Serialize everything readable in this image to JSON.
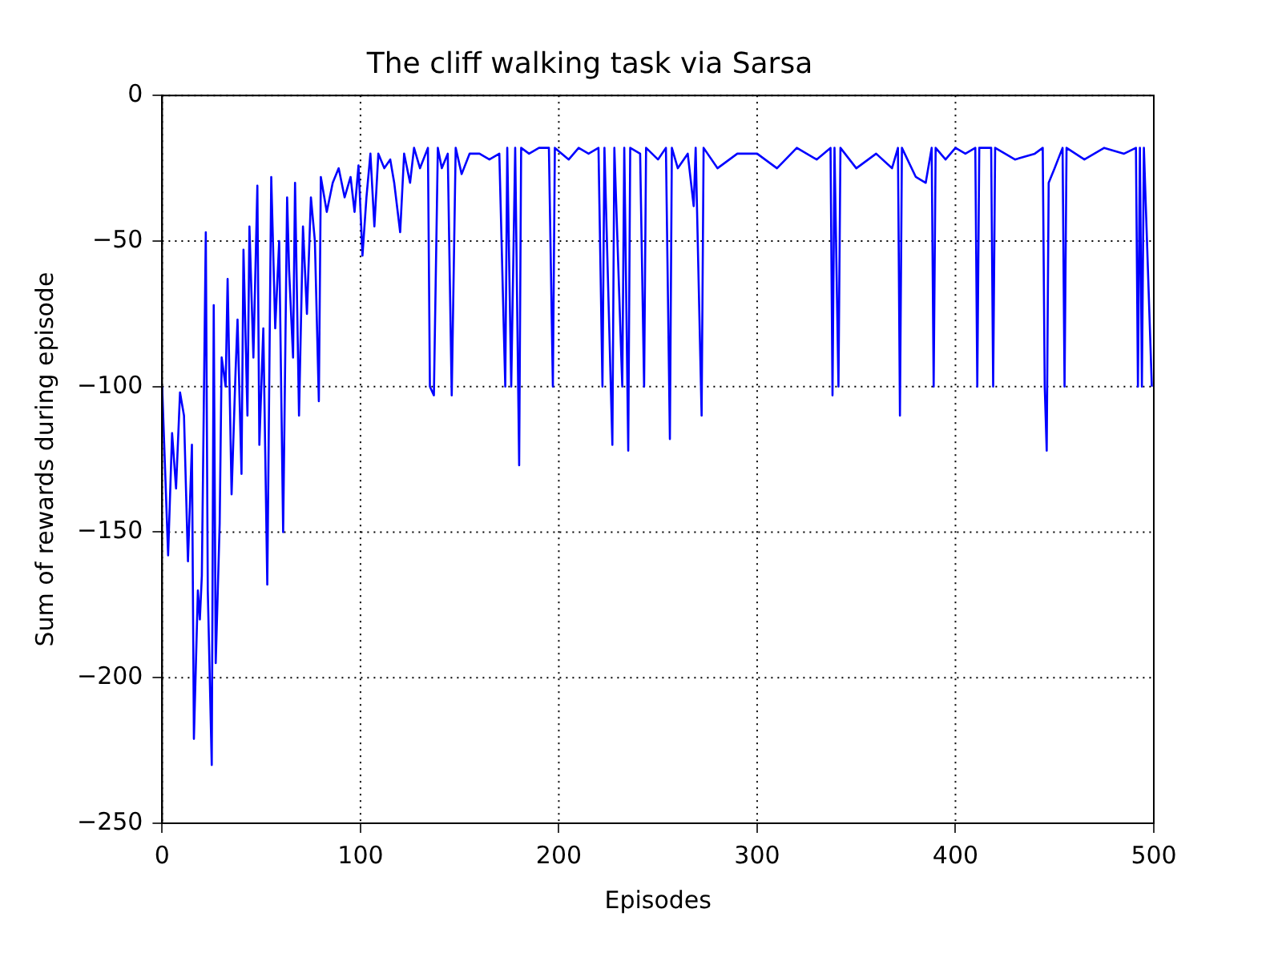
{
  "chart_data": {
    "type": "line",
    "title": "The cliff walking task via Sarsa",
    "xlabel": "Episodes",
    "ylabel": "Sum of rewards during episode",
    "xlim": [
      0,
      500
    ],
    "xticks": [
      0,
      100,
      200,
      300,
      400,
      500
    ],
    "ylim": [
      -250,
      0
    ],
    "yticks": [
      -250,
      -200,
      -150,
      -100,
      -50,
      0
    ],
    "grid": true,
    "legend": false,
    "marker": "none",
    "line_style": "solid",
    "series": [
      {
        "color": "#0000ff",
        "x": [
          0,
          3,
          5,
          7,
          9,
          11,
          13,
          15,
          16,
          18,
          19,
          20,
          22,
          23,
          25,
          26,
          27,
          29,
          30,
          32,
          33,
          35,
          37,
          38,
          40,
          41,
          43,
          44,
          46,
          48,
          49,
          51,
          53,
          55,
          57,
          59,
          61,
          63,
          64,
          66,
          67,
          69,
          71,
          73,
          75,
          77,
          79,
          80,
          83,
          86,
          89,
          92,
          95,
          97,
          99,
          101,
          103,
          105,
          107,
          109,
          112,
          115,
          117,
          120,
          122,
          125,
          127,
          130,
          134,
          135,
          137,
          139,
          141,
          144,
          146,
          148,
          151,
          155,
          160,
          165,
          170,
          173,
          174,
          176,
          178,
          180,
          181,
          185,
          190,
          195,
          197,
          198,
          205,
          210,
          215,
          220,
          222,
          223,
          227,
          228,
          232,
          233,
          235,
          236,
          241,
          243,
          244,
          250,
          254,
          256,
          257,
          260,
          265,
          268,
          269,
          272,
          273,
          280,
          290,
          300,
          310,
          320,
          330,
          337,
          338,
          339,
          341,
          342,
          350,
          360,
          368,
          371,
          372,
          373,
          380,
          385,
          388,
          389,
          390,
          395,
          400,
          405,
          410,
          411,
          412,
          418,
          419,
          420,
          430,
          440,
          444,
          445,
          446,
          447,
          450,
          454,
          455,
          456,
          465,
          475,
          485,
          491,
          492,
          493,
          494,
          495,
          499
        ],
        "values": [
          -100,
          -158,
          -116,
          -135,
          -102,
          -110,
          -160,
          -120,
          -221,
          -170,
          -180,
          -165,
          -47,
          -170,
          -230,
          -72,
          -195,
          -147,
          -90,
          -100,
          -63,
          -137,
          -95,
          -77,
          -130,
          -53,
          -110,
          -45,
          -90,
          -31,
          -120,
          -80,
          -168,
          -28,
          -80,
          -50,
          -150,
          -35,
          -60,
          -90,
          -30,
          -110,
          -45,
          -75,
          -35,
          -50,
          -105,
          -28,
          -40,
          -30,
          -25,
          -35,
          -28,
          -40,
          -24,
          -55,
          -35,
          -20,
          -45,
          -20,
          -25,
          -22,
          -30,
          -47,
          -20,
          -30,
          -18,
          -25,
          -18,
          -100,
          -103,
          -18,
          -25,
          -20,
          -103,
          -18,
          -27,
          -20,
          -20,
          -22,
          -20,
          -100,
          -18,
          -100,
          -18,
          -127,
          -18,
          -20,
          -18,
          -18,
          -100,
          -18,
          -22,
          -18,
          -20,
          -18,
          -100,
          -18,
          -120,
          -18,
          -100,
          -18,
          -122,
          -18,
          -20,
          -100,
          -18,
          -22,
          -18,
          -118,
          -18,
          -25,
          -20,
          -38,
          -18,
          -110,
          -18,
          -25,
          -20,
          -20,
          -25,
          -18,
          -22,
          -18,
          -103,
          -18,
          -100,
          -18,
          -25,
          -20,
          -25,
          -18,
          -110,
          -18,
          -28,
          -30,
          -18,
          -100,
          -18,
          -22,
          -18,
          -20,
          -18,
          -100,
          -18,
          -18,
          -100,
          -18,
          -22,
          -20,
          -18,
          -100,
          -122,
          -30,
          -25,
          -18,
          -100,
          -18,
          -22,
          -18,
          -20,
          -18,
          -100,
          -18,
          -100,
          -18,
          -100
        ]
      }
    ]
  }
}
